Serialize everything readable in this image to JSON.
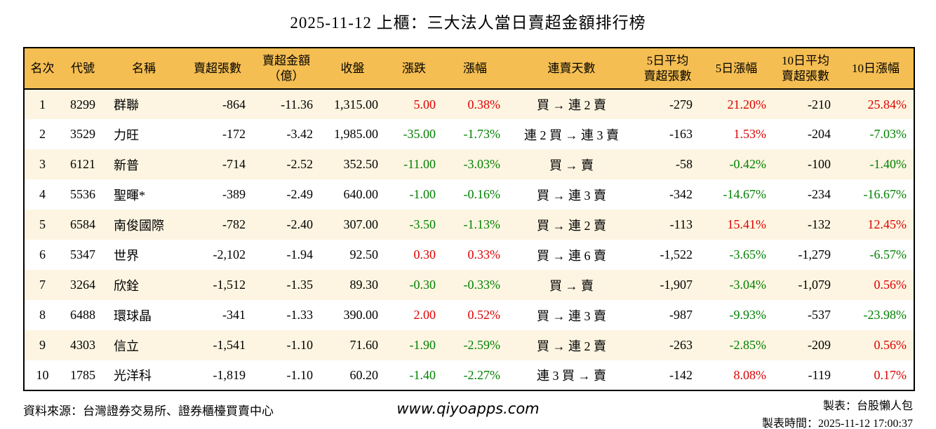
{
  "title": "2025-11-12 上櫃：三大法人當日賣超金額排行榜",
  "chart_data": {
    "type": "table",
    "title": "2025-11-12 上櫃：三大法人當日賣超金額排行榜",
    "columns": [
      {
        "id": "rank",
        "label": "名次",
        "align": "center"
      },
      {
        "id": "code",
        "label": "代號",
        "align": "center"
      },
      {
        "id": "name",
        "label": "名稱",
        "align": "left"
      },
      {
        "id": "sell-volume",
        "label": "賣超張數",
        "align": "right"
      },
      {
        "id": "sell-amount",
        "label": "賣超金額\n（億）",
        "align": "right"
      },
      {
        "id": "close",
        "label": "收盤",
        "align": "right"
      },
      {
        "id": "change",
        "label": "漲跌",
        "align": "right"
      },
      {
        "id": "change-pct",
        "label": "漲幅",
        "align": "right"
      },
      {
        "id": "sell-streak",
        "label": "連賣天數",
        "align": "center"
      },
      {
        "id": "avg5",
        "label": "5日平均\n賣超張數",
        "align": "right"
      },
      {
        "id": "chg5",
        "label": "5日漲幅",
        "align": "right"
      },
      {
        "id": "avg10",
        "label": "10日平均\n賣超張數",
        "align": "right"
      },
      {
        "id": "chg10",
        "label": "10日漲幅",
        "align": "right"
      }
    ],
    "rows": [
      {
        "cells": [
          {
            "t": "1"
          },
          {
            "t": "8299"
          },
          {
            "t": "群聯"
          },
          {
            "t": "-864"
          },
          {
            "t": "-11.36"
          },
          {
            "t": "1,315.00"
          },
          {
            "t": "5.00",
            "c": "red"
          },
          {
            "t": "0.38%",
            "c": "red"
          },
          {
            "t": "買 → 連 2 賣"
          },
          {
            "t": "-279"
          },
          {
            "t": "21.20%",
            "c": "red"
          },
          {
            "t": "-210"
          },
          {
            "t": "25.84%",
            "c": "red"
          }
        ]
      },
      {
        "cells": [
          {
            "t": "2"
          },
          {
            "t": "3529"
          },
          {
            "t": "力旺"
          },
          {
            "t": "-172"
          },
          {
            "t": "-3.42"
          },
          {
            "t": "1,985.00"
          },
          {
            "t": "-35.00",
            "c": "green"
          },
          {
            "t": "-1.73%",
            "c": "green"
          },
          {
            "t": "連 2 買 → 連 3 賣"
          },
          {
            "t": "-163"
          },
          {
            "t": "1.53%",
            "c": "red"
          },
          {
            "t": "-204"
          },
          {
            "t": "-7.03%",
            "c": "green"
          }
        ]
      },
      {
        "cells": [
          {
            "t": "3"
          },
          {
            "t": "6121"
          },
          {
            "t": "新普"
          },
          {
            "t": "-714"
          },
          {
            "t": "-2.52"
          },
          {
            "t": "352.50"
          },
          {
            "t": "-11.00",
            "c": "green"
          },
          {
            "t": "-3.03%",
            "c": "green"
          },
          {
            "t": "買 → 賣"
          },
          {
            "t": "-58"
          },
          {
            "t": "-0.42%",
            "c": "green"
          },
          {
            "t": "-100"
          },
          {
            "t": "-1.40%",
            "c": "green"
          }
        ]
      },
      {
        "cells": [
          {
            "t": "4"
          },
          {
            "t": "5536"
          },
          {
            "t": "聖暉*"
          },
          {
            "t": "-389"
          },
          {
            "t": "-2.49"
          },
          {
            "t": "640.00"
          },
          {
            "t": "-1.00",
            "c": "green"
          },
          {
            "t": "-0.16%",
            "c": "green"
          },
          {
            "t": "買 → 連 3 賣"
          },
          {
            "t": "-342"
          },
          {
            "t": "-14.67%",
            "c": "green"
          },
          {
            "t": "-234"
          },
          {
            "t": "-16.67%",
            "c": "green"
          }
        ]
      },
      {
        "cells": [
          {
            "t": "5"
          },
          {
            "t": "6584"
          },
          {
            "t": "南俊國際"
          },
          {
            "t": "-782"
          },
          {
            "t": "-2.40"
          },
          {
            "t": "307.00"
          },
          {
            "t": "-3.50",
            "c": "green"
          },
          {
            "t": "-1.13%",
            "c": "green"
          },
          {
            "t": "買 → 連 2 賣"
          },
          {
            "t": "-113"
          },
          {
            "t": "15.41%",
            "c": "red"
          },
          {
            "t": "-132"
          },
          {
            "t": "12.45%",
            "c": "red"
          }
        ]
      },
      {
        "cells": [
          {
            "t": "6"
          },
          {
            "t": "5347"
          },
          {
            "t": "世界"
          },
          {
            "t": "-2,102"
          },
          {
            "t": "-1.94"
          },
          {
            "t": "92.50"
          },
          {
            "t": "0.30",
            "c": "red"
          },
          {
            "t": "0.33%",
            "c": "red"
          },
          {
            "t": "買 → 連 6 賣"
          },
          {
            "t": "-1,522"
          },
          {
            "t": "-3.65%",
            "c": "green"
          },
          {
            "t": "-1,279"
          },
          {
            "t": "-6.57%",
            "c": "green"
          }
        ]
      },
      {
        "cells": [
          {
            "t": "7"
          },
          {
            "t": "3264"
          },
          {
            "t": "欣銓"
          },
          {
            "t": "-1,512"
          },
          {
            "t": "-1.35"
          },
          {
            "t": "89.30"
          },
          {
            "t": "-0.30",
            "c": "green"
          },
          {
            "t": "-0.33%",
            "c": "green"
          },
          {
            "t": "買 → 賣"
          },
          {
            "t": "-1,907"
          },
          {
            "t": "-3.04%",
            "c": "green"
          },
          {
            "t": "-1,079"
          },
          {
            "t": "0.56%",
            "c": "red"
          }
        ]
      },
      {
        "cells": [
          {
            "t": "8"
          },
          {
            "t": "6488"
          },
          {
            "t": "環球晶"
          },
          {
            "t": "-341"
          },
          {
            "t": "-1.33"
          },
          {
            "t": "390.00"
          },
          {
            "t": "2.00",
            "c": "red"
          },
          {
            "t": "0.52%",
            "c": "red"
          },
          {
            "t": "買 → 連 3 賣"
          },
          {
            "t": "-987"
          },
          {
            "t": "-9.93%",
            "c": "green"
          },
          {
            "t": "-537"
          },
          {
            "t": "-23.98%",
            "c": "green"
          }
        ]
      },
      {
        "cells": [
          {
            "t": "9"
          },
          {
            "t": "4303"
          },
          {
            "t": "信立"
          },
          {
            "t": "-1,541"
          },
          {
            "t": "-1.10"
          },
          {
            "t": "71.60"
          },
          {
            "t": "-1.90",
            "c": "green"
          },
          {
            "t": "-2.59%",
            "c": "green"
          },
          {
            "t": "買 → 連 2 賣"
          },
          {
            "t": "-263"
          },
          {
            "t": "-2.85%",
            "c": "green"
          },
          {
            "t": "-209"
          },
          {
            "t": "0.56%",
            "c": "red"
          }
        ]
      },
      {
        "cells": [
          {
            "t": "10"
          },
          {
            "t": "1785"
          },
          {
            "t": "光洋科"
          },
          {
            "t": "-1,819"
          },
          {
            "t": "-1.10"
          },
          {
            "t": "60.20"
          },
          {
            "t": "-1.40",
            "c": "green"
          },
          {
            "t": "-2.27%",
            "c": "green"
          },
          {
            "t": "連 3 買 → 賣"
          },
          {
            "t": "-142"
          },
          {
            "t": "8.08%",
            "c": "red"
          },
          {
            "t": "-119"
          },
          {
            "t": "0.17%",
            "c": "red"
          }
        ]
      }
    ]
  },
  "footer": {
    "source": "資料來源：台灣證券交易所、證券櫃檯買賣中心",
    "website": "www.qiyoapps.com",
    "maker": "製表：台股懶人包",
    "made_at": "製表時間：2025-11-12 17:00:37"
  },
  "colors": {
    "header_bg": "#F5BE52",
    "row_odd_bg": "#FDF5E1",
    "row_even_bg": "#FFFFFF",
    "up_red": "#DD0000",
    "down_green": "#008000",
    "border": "#000000"
  }
}
